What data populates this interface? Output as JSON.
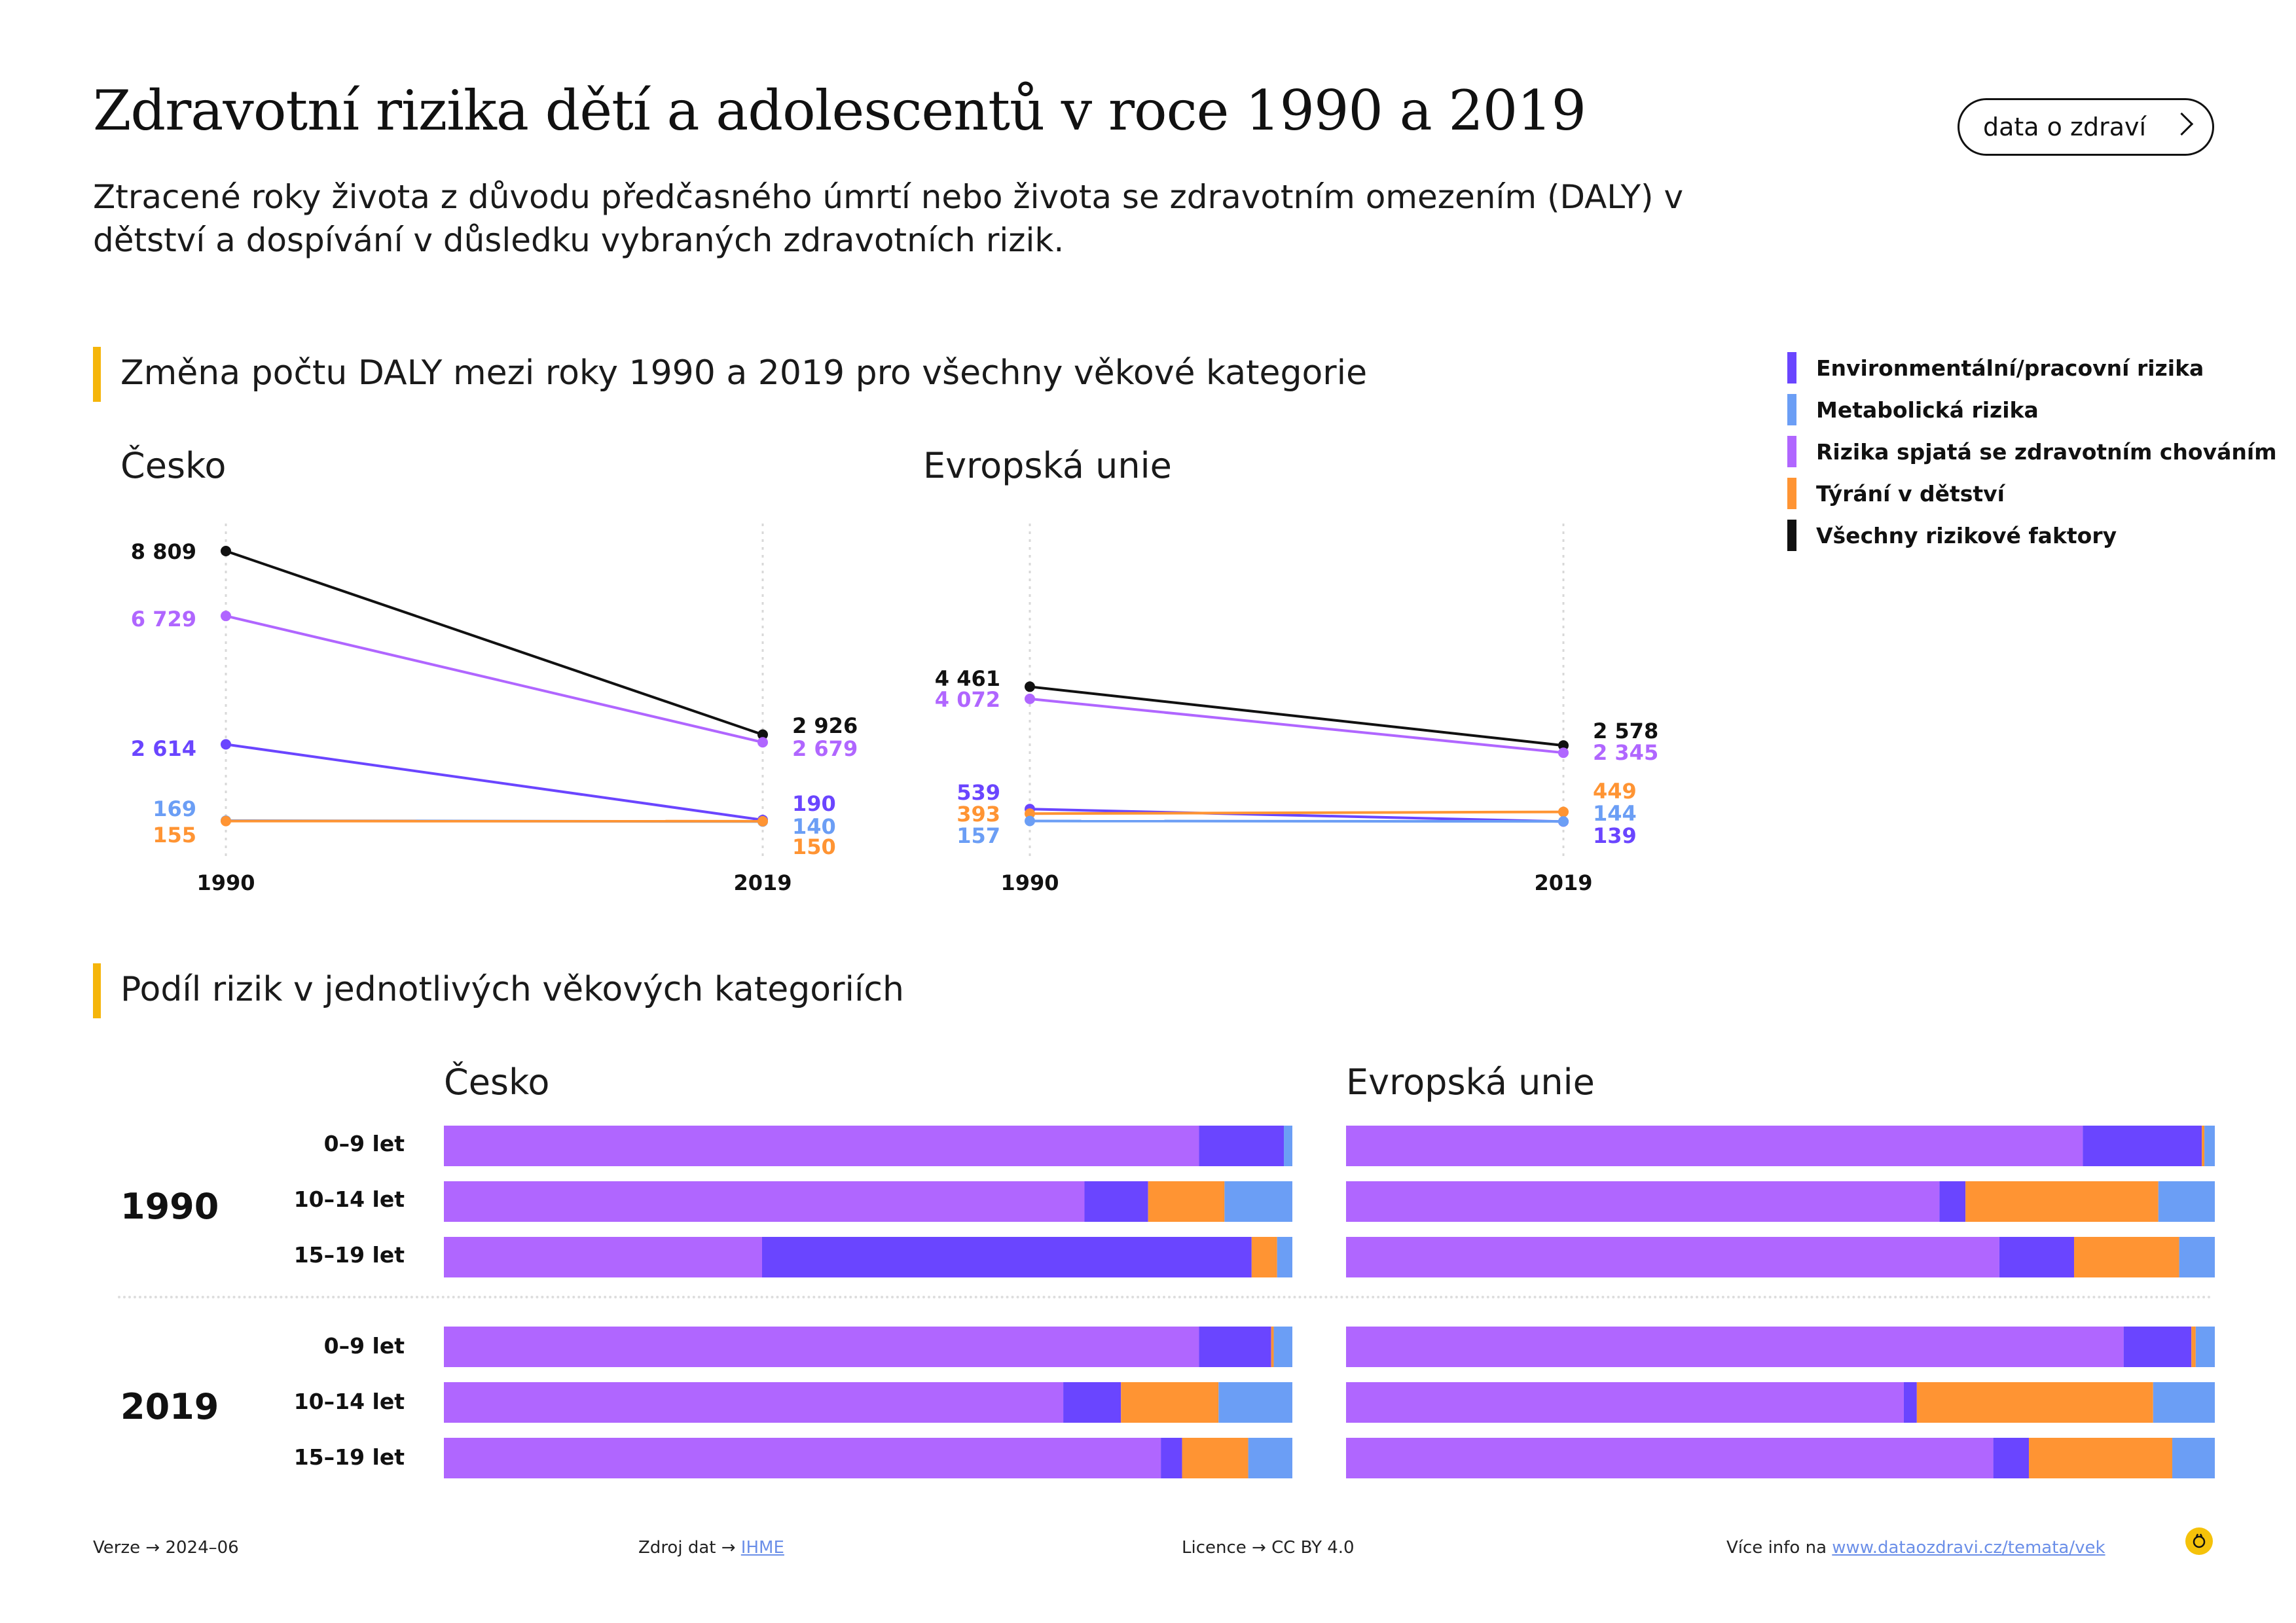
{
  "header": {
    "title": "Zdravotní rizika dětí a adolescentů v roce 1990 a 2019",
    "subtitle": "Ztracené roky života z důvodu předčasného úmrtí nebo života se zdravotním omezením (DALY) v dětství a dospívání v důsledku vybraných zdravotních rizik.",
    "button_label": "data o zdraví"
  },
  "sections": {
    "change_title": "Změna počtu DALY mezi roky 1990 a 2019 pro všechny věkové kategorie",
    "share_title": "Podíl rizik v jednotlivých věkových kategoriích"
  },
  "legend": [
    {
      "label": "Environmentální/pracovní rizika",
      "color": "#6a45ff"
    },
    {
      "label": "Metabolická rizika",
      "color": "#6b9ef5"
    },
    {
      "label": "Rizika spjatá se zdravotním chováním",
      "color": "#b066ff"
    },
    {
      "label": "Týrání v dětství",
      "color": "#ff9433"
    },
    {
      "label": "Všechny rizikové faktory",
      "color": "#111111"
    }
  ],
  "chart_data": [
    {
      "type": "line",
      "title": "Česko",
      "x": [
        "1990",
        "2019"
      ],
      "series": [
        {
          "name": "Všechny rizikové faktory",
          "color": "#111111",
          "values": [
            8809,
            2926
          ],
          "labels": [
            "8 809",
            "2 926"
          ]
        },
        {
          "name": "Rizika spjatá se zdravotním chováním",
          "color": "#b066ff",
          "values": [
            6729,
            2679
          ],
          "labels": [
            "6 729",
            "2 679"
          ]
        },
        {
          "name": "Environmentální/pracovní rizika",
          "color": "#6a45ff",
          "values": [
            2614,
            190
          ],
          "labels": [
            "2 614",
            "190"
          ]
        },
        {
          "name": "Metabolická rizika",
          "color": "#6b9ef5",
          "values": [
            169,
            140
          ],
          "labels": [
            "169",
            "140"
          ]
        },
        {
          "name": "Týrání v dětství",
          "color": "#ff9433",
          "values": [
            155,
            150
          ],
          "labels": [
            "155",
            "150"
          ]
        }
      ]
    },
    {
      "type": "line",
      "title": "Evropská unie",
      "x": [
        "1990",
        "2019"
      ],
      "series": [
        {
          "name": "Všechny rizikové faktory",
          "color": "#111111",
          "values": [
            4461,
            2578
          ],
          "labels": [
            "4 461",
            "2 578"
          ]
        },
        {
          "name": "Rizika spjatá se zdravotním chováním",
          "color": "#b066ff",
          "values": [
            4072,
            2345
          ],
          "labels": [
            "4 072",
            "2 345"
          ]
        },
        {
          "name": "Environmentální/pracovní rizika",
          "color": "#6a45ff",
          "values": [
            539,
            139
          ],
          "labels": [
            "539",
            "139"
          ]
        },
        {
          "name": "Týrání v dětství",
          "color": "#ff9433",
          "values": [
            393,
            449
          ],
          "labels": [
            "393",
            "449"
          ]
        },
        {
          "name": "Metabolická rizika",
          "color": "#6b9ef5",
          "values": [
            157,
            144
          ],
          "labels": [
            "157",
            "144"
          ]
        }
      ]
    },
    {
      "type": "bar",
      "title": "Česko",
      "stacked": "100%",
      "groups": [
        {
          "year": "1990",
          "rows": [
            {
              "age": "0–9 let",
              "shares": [
                0.89,
                0.1,
                0.0,
                0.01
              ]
            },
            {
              "age": "10–14 let",
              "shares": [
                0.755,
                0.075,
                0.09,
                0.08
              ]
            },
            {
              "age": "15–19 let",
              "shares": [
                0.375,
                0.577,
                0.03,
                0.018
              ]
            }
          ]
        },
        {
          "year": "2019",
          "rows": [
            {
              "age": "0–9 let",
              "shares": [
                0.89,
                0.085,
                0.003,
                0.022
              ]
            },
            {
              "age": "10–14 let",
              "shares": [
                0.73,
                0.068,
                0.115,
                0.087
              ]
            },
            {
              "age": "15–19 let",
              "shares": [
                0.845,
                0.025,
                0.078,
                0.052
              ]
            }
          ]
        }
      ]
    },
    {
      "type": "bar",
      "title": "Evropská unie",
      "stacked": "100%",
      "groups": [
        {
          "year": "1990",
          "rows": [
            {
              "age": "0–9 let",
              "shares": [
                0.848,
                0.137,
                0.003,
                0.012
              ]
            },
            {
              "age": "10–14 let",
              "shares": [
                0.683,
                0.03,
                0.222,
                0.065
              ]
            },
            {
              "age": "15–19 let",
              "shares": [
                0.752,
                0.086,
                0.121,
                0.041
              ]
            }
          ]
        },
        {
          "year": "2019",
          "rows": [
            {
              "age": "0–9 let",
              "shares": [
                0.895,
                0.078,
                0.005,
                0.022
              ]
            },
            {
              "age": "10–14 let",
              "shares": [
                0.642,
                0.015,
                0.272,
                0.071
              ]
            },
            {
              "age": "15–19 let",
              "shares": [
                0.745,
                0.041,
                0.165,
                0.049
              ]
            }
          ]
        }
      ]
    }
  ],
  "bar_colors": [
    "#b066ff",
    "#6a45ff",
    "#ff9433",
    "#6b9ef5"
  ],
  "footer": {
    "version_label": "Verze",
    "version_value": "2024–06",
    "source_label": "Zdroj dat",
    "source_value": "IHME",
    "license_label": "Licence",
    "license_value": "CC BY 4.0",
    "more_label": "Více info na",
    "more_value": "www.dataozdravi.cz/temata/vek",
    "arrow": "→"
  }
}
